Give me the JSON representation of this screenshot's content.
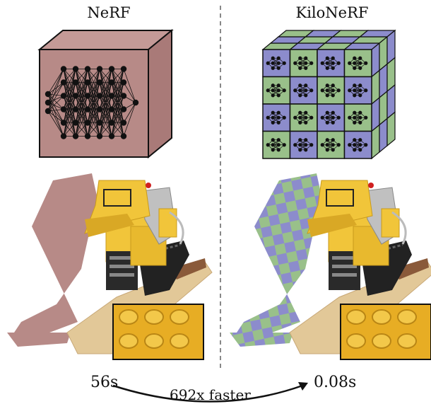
{
  "left_panel": {
    "title": "NeRF",
    "time": "56s"
  },
  "right_panel": {
    "title": "KiloNeRF",
    "time": "0.08s"
  },
  "speedup_label": "692x faster",
  "colors": {
    "nerf_box_front": "#b78a87",
    "nerf_box_side": "#a97a78",
    "nerf_box_top": "#c49a97",
    "kilo_blue": "#8c8ccc",
    "kilo_green": "#99c08a",
    "lego_yellow": "#f1c53a",
    "lego_shadow": "#c99a1c",
    "base_tan": "#e2c898",
    "divider": "#888888"
  },
  "icons": [
    "neural-network-icon",
    "lego-bulldozer-image",
    "zoom-inset-image"
  ]
}
